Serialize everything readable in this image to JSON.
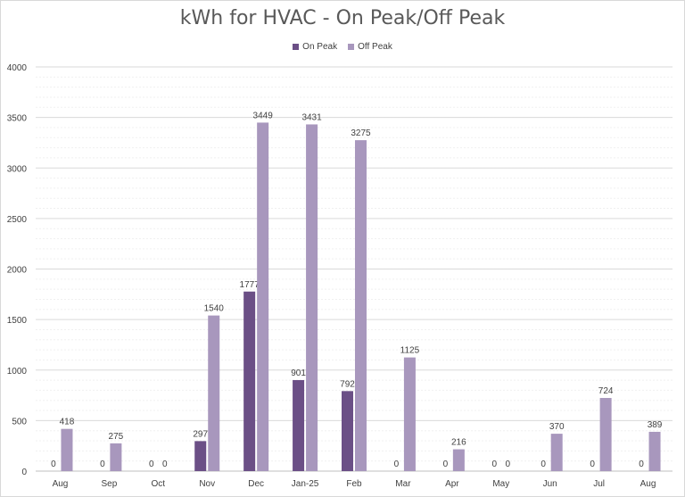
{
  "chart_data": {
    "type": "bar",
    "title": "kWh for HVAC - On Peak/Off Peak",
    "categories": [
      "Aug",
      "Sep",
      "Oct",
      "Nov",
      "Dec",
      "Jan-25",
      "Feb",
      "Mar",
      "Apr",
      "May",
      "Jun",
      "Jul",
      "Aug"
    ],
    "series": [
      {
        "name": "On Peak",
        "color": "#6b4f86",
        "values": [
          0,
          0,
          0,
          297,
          1777,
          901,
          792,
          0,
          0,
          0,
          0,
          0,
          0
        ]
      },
      {
        "name": "Off Peak",
        "color": "#a897bd",
        "values": [
          418,
          275,
          0,
          1540,
          3449,
          3431,
          3275,
          1125,
          216,
          0,
          370,
          724,
          389
        ]
      }
    ],
    "on_peak_labels_shown": [
      true,
      true,
      true,
      true,
      true,
      true,
      true,
      true,
      true,
      true,
      true,
      true,
      true
    ],
    "off_peak_labels_shown": [
      true,
      true,
      true,
      true,
      true,
      true,
      true,
      true,
      true,
      true,
      true,
      true,
      true
    ],
    "ylim": [
      0,
      4000
    ],
    "yticks": [
      0,
      500,
      1000,
      1500,
      2000,
      2500,
      3000,
      3500,
      4000
    ],
    "grid": true,
    "legend_position": "top-center",
    "xlabel": "",
    "ylabel": ""
  }
}
